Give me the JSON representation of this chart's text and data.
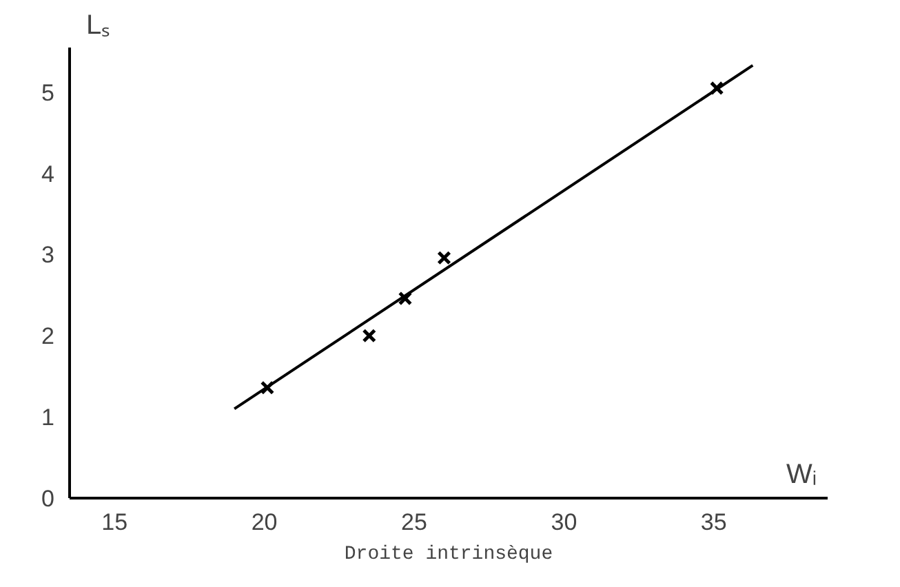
{
  "chart_data": {
    "type": "scatter",
    "title": "Droite intrinsèque",
    "xlabel": "Wᵢ",
    "ylabel": "Lₛ",
    "xlim": [
      13.5,
      38.8
    ],
    "ylim": [
      0,
      5.55
    ],
    "xticks": [
      15,
      20,
      25,
      30,
      35
    ],
    "yticks": [
      0,
      1,
      2,
      3,
      4,
      5
    ],
    "grid": false,
    "marker": "cross",
    "series": [
      {
        "color": "#000000",
        "x": [
          20.1,
          23.5,
          24.7,
          26.0,
          35.1
        ],
        "values": [
          1.36,
          2.0,
          2.46,
          2.96,
          5.05
        ]
      },
      {
        "type": "line",
        "color": "#000000",
        "x": [
          19.0,
          36.3
        ],
        "values": [
          1.1,
          5.33
        ],
        "marker": "none",
        "line_style": "solid"
      }
    ]
  }
}
